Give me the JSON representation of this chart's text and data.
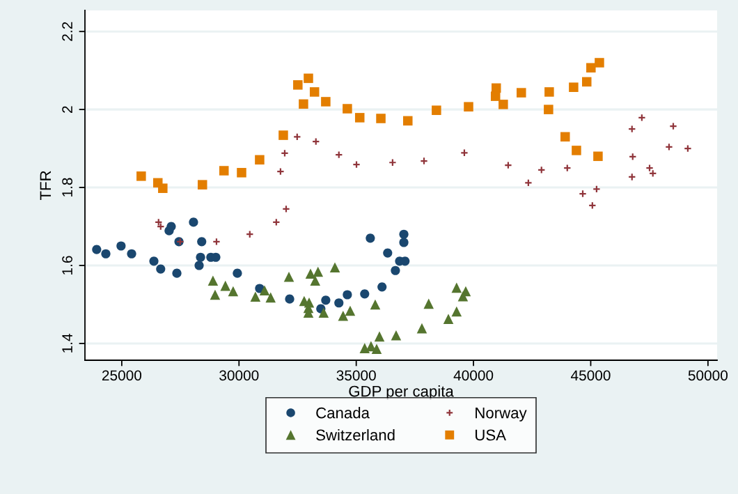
{
  "chart_data": {
    "type": "scatter",
    "xlabel": "GDP per capita",
    "ylabel": "TFR",
    "xlim": [
      23430,
      50390
    ],
    "ylim": [
      1.357,
      2.254
    ],
    "xticks": [
      25000,
      30000,
      35000,
      40000,
      45000,
      50000
    ],
    "yticks": [
      1.4,
      1.6,
      1.8,
      2,
      2.2
    ],
    "grid": "y",
    "legend": "bottom",
    "series": [
      {
        "name": "Canada",
        "color": "#1a476f",
        "marker": "circle",
        "x": [
          23930,
          24320,
          24970,
          25420,
          26370,
          26660,
          27020,
          27110,
          27440,
          27350,
          28060,
          28410,
          28360,
          28300,
          28800,
          29010,
          29930,
          30880,
          32160,
          33490,
          33700,
          34260,
          34620,
          35360,
          35600,
          36100,
          36340,
          36670,
          36850,
          37080,
          37030,
          37030
        ],
        "values": [
          1.641,
          1.63,
          1.65,
          1.63,
          1.611,
          1.591,
          1.689,
          1.7,
          1.661,
          1.58,
          1.711,
          1.661,
          1.621,
          1.6,
          1.621,
          1.621,
          1.58,
          1.541,
          1.514,
          1.489,
          1.511,
          1.504,
          1.525,
          1.527,
          1.67,
          1.545,
          1.632,
          1.587,
          1.611,
          1.611,
          1.68,
          1.659
        ]
      },
      {
        "name": "Switzerland",
        "color": "#55752f",
        "marker": "triangle",
        "x": [
          28890,
          28980,
          29420,
          29750,
          30700,
          31090,
          31350,
          32130,
          32780,
          32990,
          32960,
          32960,
          33050,
          33250,
          33370,
          33610,
          34090,
          34440,
          34740,
          35810,
          35360,
          35630,
          35870,
          35990,
          36700,
          37800,
          38090,
          38930,
          39280,
          39280,
          39670,
          39550
        ],
        "values": [
          1.561,
          1.525,
          1.548,
          1.534,
          1.52,
          1.536,
          1.518,
          1.571,
          1.509,
          1.505,
          1.491,
          1.479,
          1.579,
          1.561,
          1.584,
          1.479,
          1.595,
          1.471,
          1.484,
          1.5,
          1.388,
          1.393,
          1.386,
          1.418,
          1.421,
          1.439,
          1.502,
          1.463,
          1.482,
          1.543,
          1.534,
          1.521
        ]
      },
      {
        "name": "Norway",
        "color": "#90353b",
        "marker": "cross",
        "x": [
          26570,
          26660,
          27490,
          29040,
          30460,
          31590,
          32010,
          31770,
          31950,
          32480,
          33280,
          34260,
          35010,
          36550,
          37890,
          39610,
          41480,
          42340,
          42900,
          44000,
          44660,
          45250,
          45070,
          46760,
          47180,
          46790,
          46760,
          47510,
          47650,
          48340,
          48520,
          49140
        ],
        "values": [
          1.711,
          1.7,
          1.661,
          1.661,
          1.68,
          1.711,
          1.745,
          1.841,
          1.888,
          1.93,
          1.918,
          1.884,
          1.859,
          1.864,
          1.868,
          1.889,
          1.857,
          1.812,
          1.845,
          1.85,
          1.784,
          1.796,
          1.754,
          1.95,
          1.979,
          1.879,
          1.827,
          1.85,
          1.836,
          1.904,
          1.957,
          1.9
        ]
      },
      {
        "name": "USA",
        "color": "#e37e00",
        "marker": "square",
        "x": [
          25830,
          26540,
          26750,
          28440,
          29360,
          30110,
          30880,
          31890,
          32510,
          32960,
          33220,
          32750,
          33700,
          34620,
          35150,
          36050,
          37200,
          38420,
          39790,
          40970,
          40940,
          41270,
          42040,
          43230,
          43200,
          44270,
          44830,
          45010,
          45370,
          43910,
          44390,
          45310
        ],
        "values": [
          1.829,
          1.812,
          1.798,
          1.807,
          1.843,
          1.838,
          1.871,
          1.934,
          2.063,
          2.08,
          2.045,
          2.014,
          2.02,
          2.002,
          1.979,
          1.977,
          1.971,
          1.998,
          2.007,
          2.055,
          2.034,
          2.013,
          2.043,
          2.045,
          2.0,
          2.057,
          2.071,
          2.107,
          2.12,
          1.93,
          1.895,
          1.88
        ]
      }
    ]
  }
}
